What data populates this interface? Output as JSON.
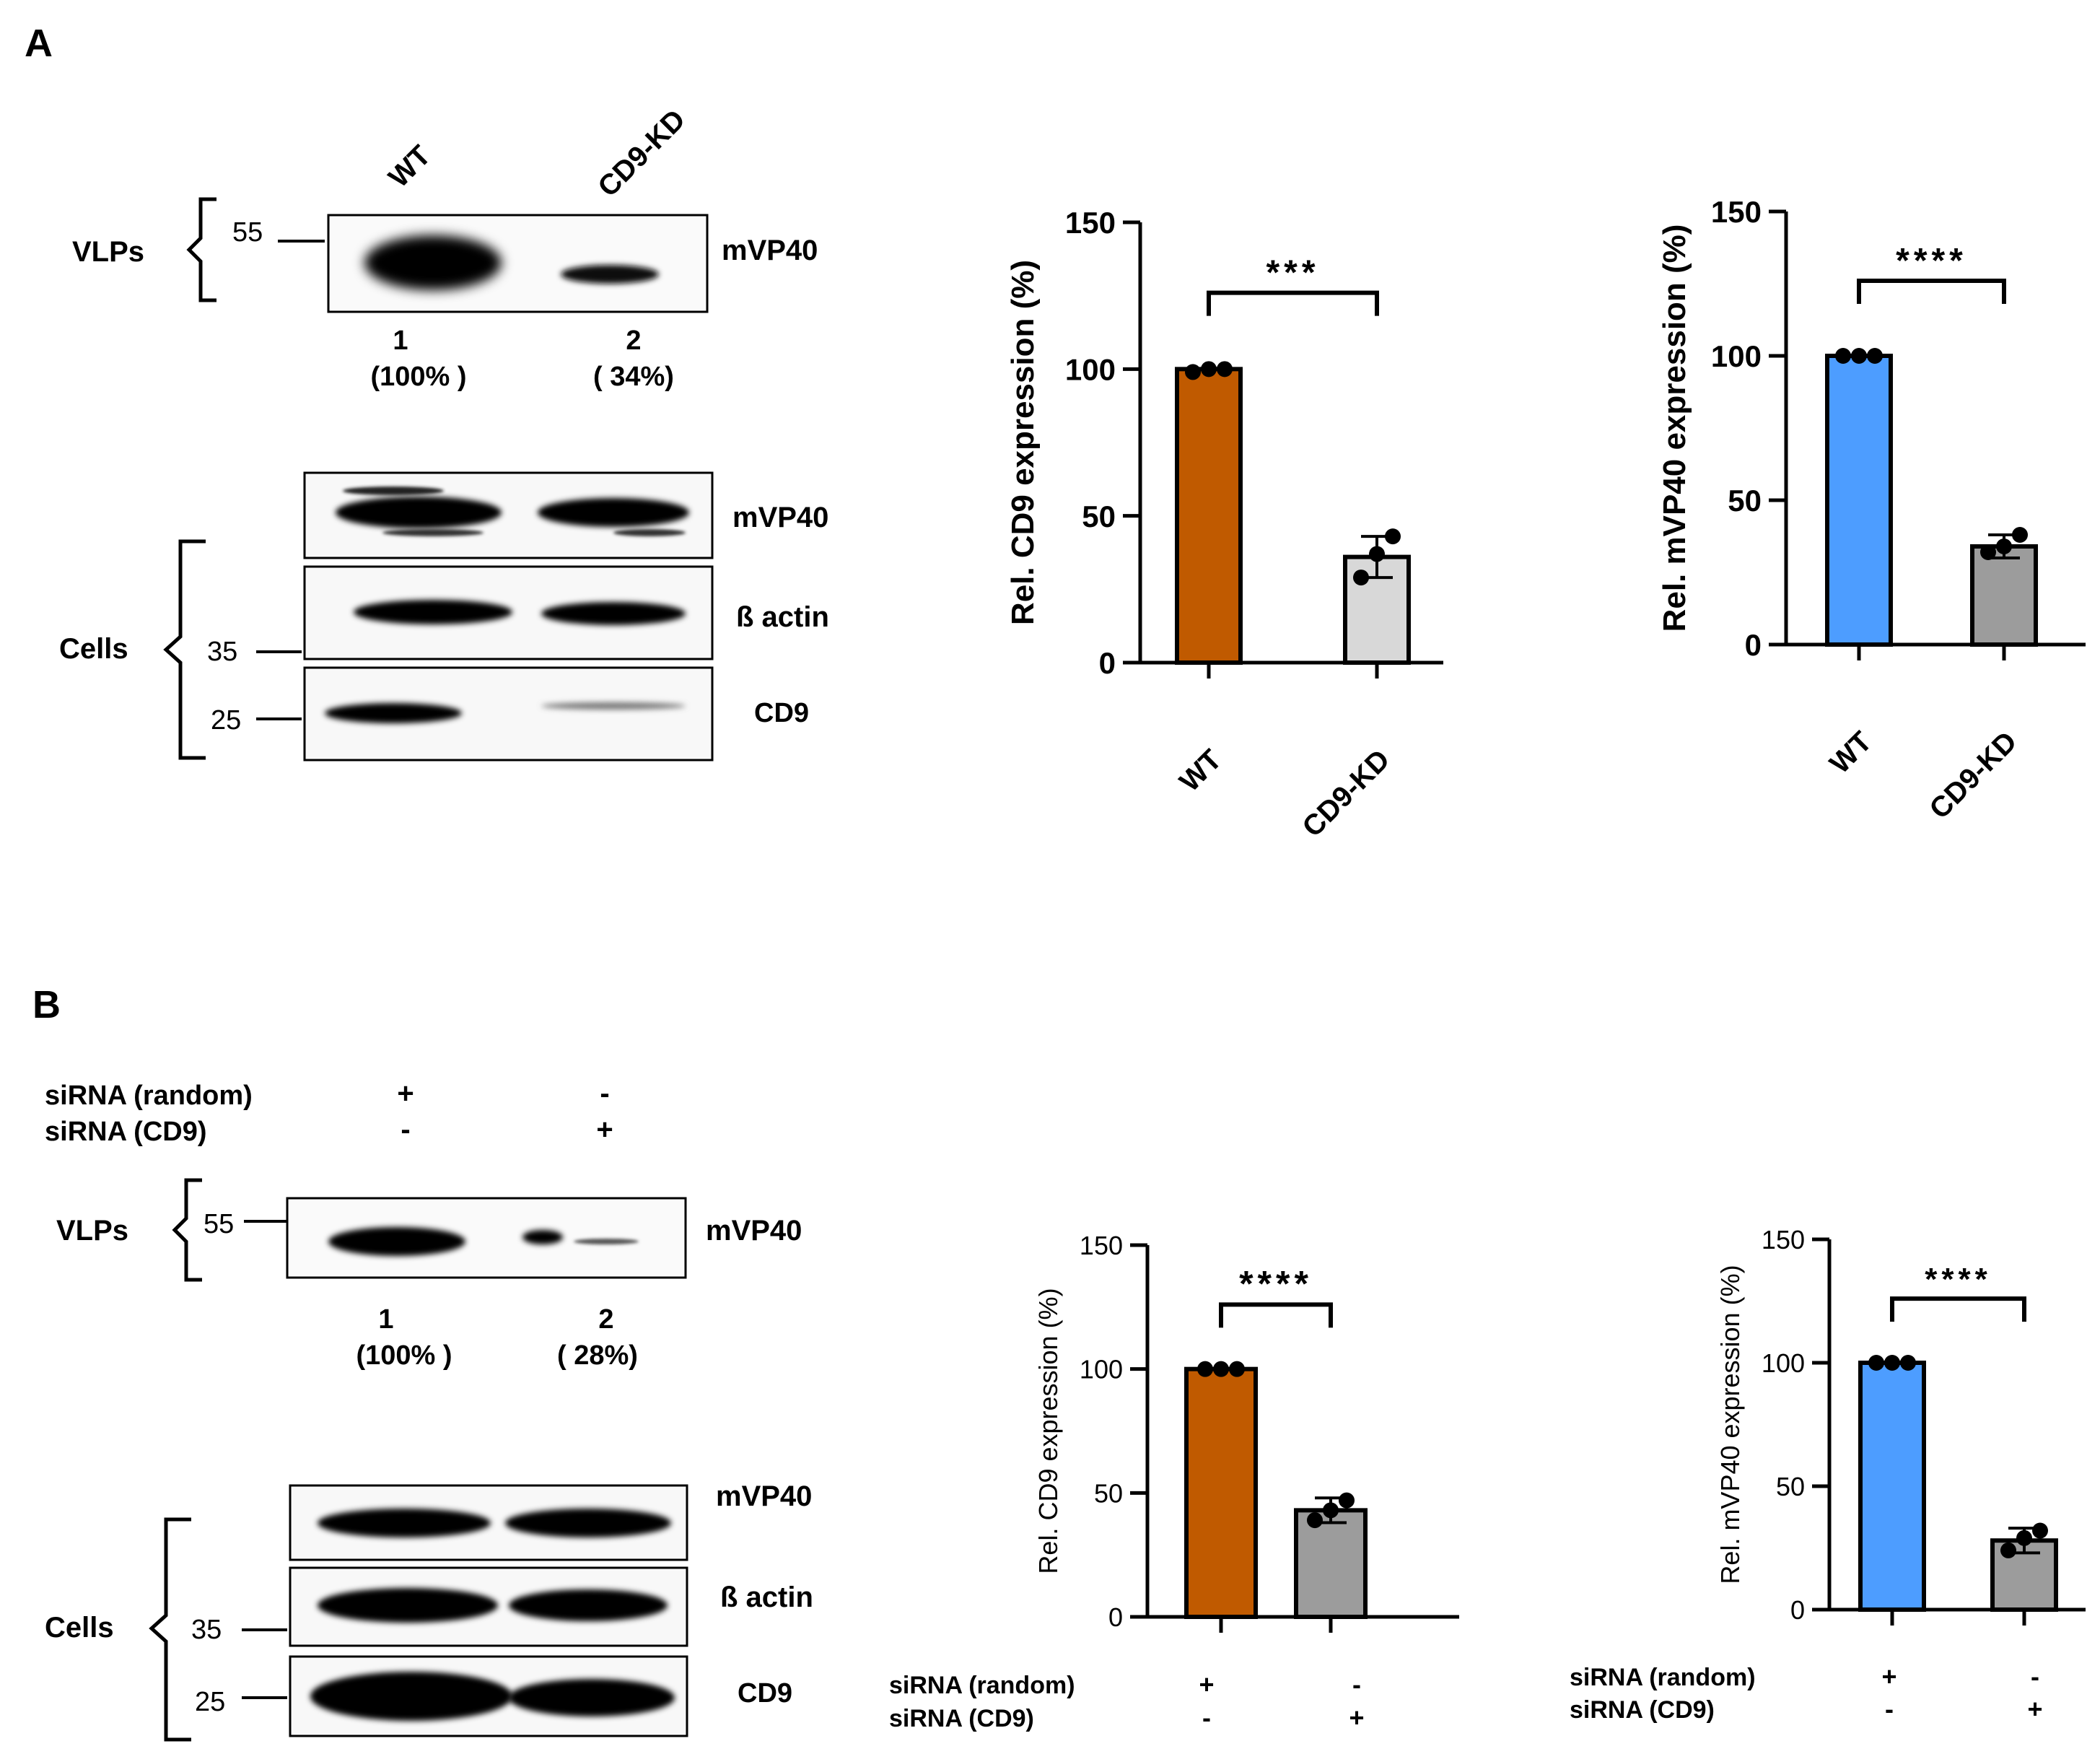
{
  "panels": {
    "a": {
      "letter": "A",
      "lanes": [
        "WT",
        "CD9-KD"
      ],
      "vlps_label": "VLPs",
      "vlps_marker": "55",
      "vlps_band_label": "mVP40",
      "lane_numbers": [
        "1",
        "2"
      ],
      "lane_percents": [
        "(100%  )",
        "( 34%)"
      ],
      "cells_label": "Cells",
      "cells_markers": [
        "35",
        "25"
      ],
      "cells_band_labels": [
        "mVP40",
        "ß actin",
        "CD9"
      ]
    },
    "b": {
      "letter": "B",
      "treat_rows": [
        {
          "name": "siRNA (random)",
          "vals": [
            "+",
            "-"
          ]
        },
        {
          "name": "siRNA (CD9)",
          "vals": [
            "-",
            "+"
          ]
        }
      ],
      "vlps_label": "VLPs",
      "vlps_marker": "55",
      "vlps_band_label": "mVP40",
      "lane_numbers": [
        "1",
        "2"
      ],
      "lane_percents": [
        "(100%  )",
        "( 28%)"
      ],
      "cells_label": "Cells",
      "cells_markers": [
        "35",
        "25"
      ],
      "cells_band_labels": [
        "mVP40",
        "ß actin",
        "CD9"
      ],
      "chart_treat_rows": [
        {
          "name": "siRNA (random)",
          "vals": [
            "+",
            "-"
          ]
        },
        {
          "name": "siRNA (CD9)",
          "vals": [
            "-",
            "+"
          ]
        }
      ]
    }
  },
  "chart_data": [
    {
      "id": "a-cd9",
      "type": "bar",
      "categories": [
        "WT",
        "CD9-KD"
      ],
      "values": [
        100,
        36
      ],
      "errors": [
        0,
        7
      ],
      "points": [
        [
          99,
          100,
          100
        ],
        [
          29,
          37,
          43
        ]
      ],
      "ylabel": "Rel. CD9 expression (%)",
      "ylim": [
        0,
        150
      ],
      "yticks": [
        0,
        50,
        100,
        150
      ],
      "significance": "***",
      "colors": [
        "#c05a00",
        "#d8d8d8"
      ]
    },
    {
      "id": "a-mvp40",
      "type": "bar",
      "categories": [
        "WT",
        "CD9-KD"
      ],
      "values": [
        100,
        34
      ],
      "errors": [
        0,
        4
      ],
      "points": [
        [
          100,
          100,
          100
        ],
        [
          32,
          34,
          38
        ]
      ],
      "ylabel": "Rel. mVP40 expression (%)",
      "ylim": [
        0,
        150
      ],
      "yticks": [
        0,
        50,
        100,
        150
      ],
      "significance": "****",
      "colors": [
        "#4d9dff",
        "#9c9c9c"
      ]
    },
    {
      "id": "b-cd9",
      "type": "bar",
      "categories": [
        "",
        ""
      ],
      "values": [
        100,
        43
      ],
      "errors": [
        0,
        5
      ],
      "points": [
        [
          100,
          100,
          100
        ],
        [
          39,
          43,
          47
        ]
      ],
      "ylabel": "Rel. CD9 expression (%)",
      "ylim": [
        0,
        150
      ],
      "yticks": [
        0,
        50,
        100,
        150
      ],
      "significance": "****",
      "colors": [
        "#c05a00",
        "#9c9c9c"
      ]
    },
    {
      "id": "b-mvp40",
      "type": "bar",
      "categories": [
        "",
        ""
      ],
      "values": [
        100,
        28
      ],
      "errors": [
        0,
        5
      ],
      "points": [
        [
          100,
          100,
          100
        ],
        [
          24,
          29,
          32
        ]
      ],
      "ylabel": "Rel. mVP40 expression (%)",
      "ylim": [
        0,
        150
      ],
      "yticks": [
        0,
        50,
        100,
        150
      ],
      "significance": "****",
      "colors": [
        "#4d9dff",
        "#9c9c9c"
      ]
    }
  ]
}
